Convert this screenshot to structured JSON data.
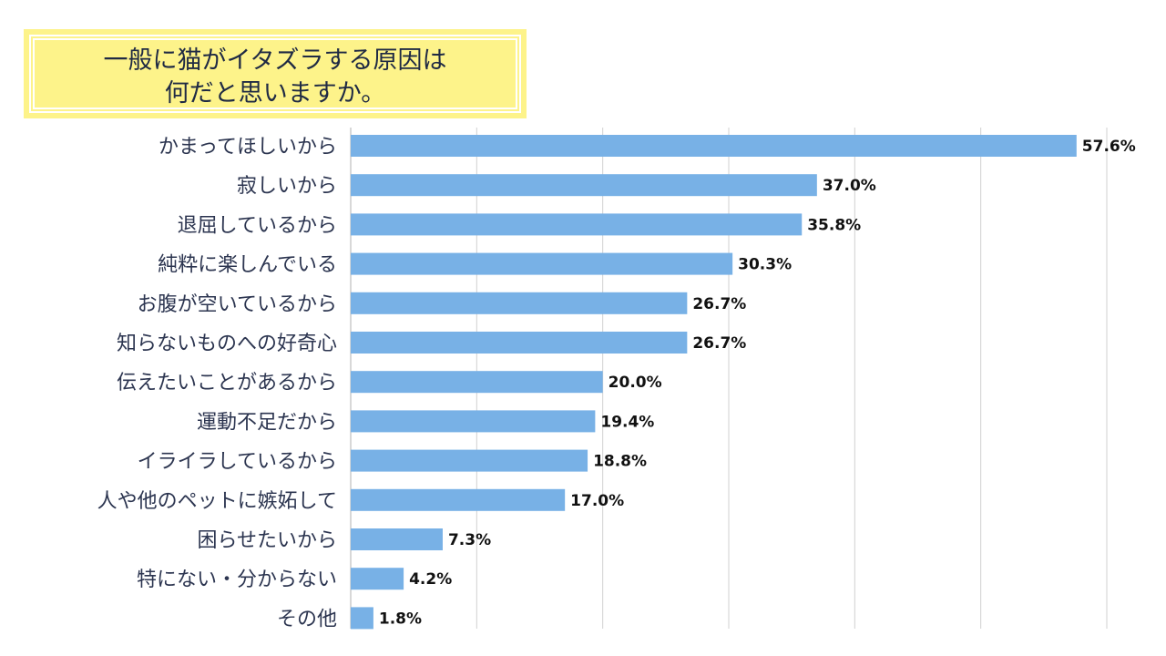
{
  "title": {
    "line1": "一般に猫がイタズラする原因は",
    "line2": "何だと思いますか。"
  },
  "colors": {
    "bar": "#78b1e6",
    "grid": "#d0d0d0",
    "title_bg": "#fdf38a"
  },
  "chart_data": {
    "type": "bar",
    "orientation": "horizontal",
    "title": "一般に猫がイタズラする原因は何だと思いますか。",
    "categories": [
      "かまってほしいから",
      "寂しいから",
      "退屈しているから",
      "純粋に楽しんでいる",
      "お腹が空いているから",
      "知らないものへの好奇心",
      "伝えたいことがあるから",
      "運動不足だから",
      "イライラしているから",
      "人や他のペットに嫉妬して",
      "困らせたいから",
      "特にない・分からない",
      "その他"
    ],
    "values": [
      57.6,
      37.0,
      35.8,
      30.3,
      26.7,
      26.7,
      20.0,
      19.4,
      18.8,
      17.0,
      7.3,
      4.2,
      1.8
    ],
    "value_labels": [
      "57.6%",
      "37.0%",
      "35.8%",
      "30.3%",
      "26.7%",
      "26.7%",
      "20.0%",
      "19.4%",
      "18.8%",
      "17.0%",
      "7.3%",
      "4.2%",
      "1.8%"
    ],
    "xlim": [
      0,
      60
    ],
    "grid": true,
    "xlabel": "",
    "ylabel": ""
  }
}
